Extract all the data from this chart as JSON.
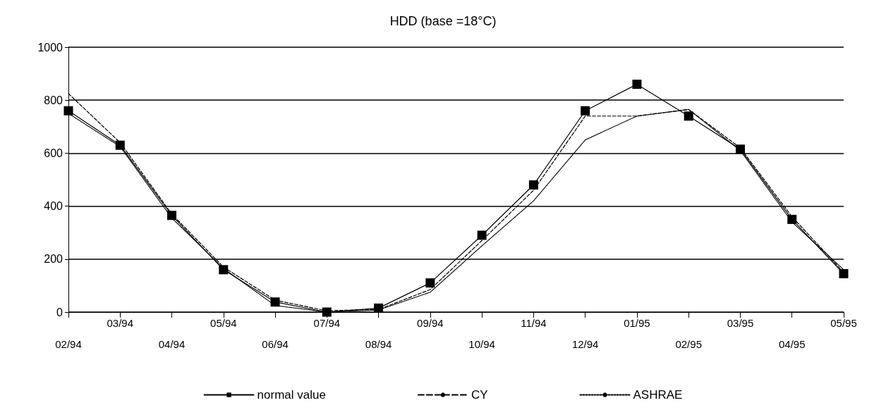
{
  "chart_data": {
    "type": "line",
    "title": "HDD (base =18°C)",
    "categories": [
      "02/94",
      "03/94",
      "04/94",
      "05/94",
      "06/94",
      "07/94",
      "08/94",
      "09/94",
      "10/94",
      "11/94",
      "12/94",
      "01/95",
      "02/95",
      "03/95",
      "04/95",
      "05/95"
    ],
    "series": [
      {
        "name": "normal value",
        "color": "#000000",
        "marker": "square",
        "line_style": "solid",
        "values": [
          760,
          630,
          365,
          160,
          38,
          0,
          15,
          110,
          290,
          480,
          760,
          860,
          740,
          615,
          350,
          145
        ]
      },
      {
        "name": "CY",
        "color": "#000000",
        "marker": "none",
        "line_style": "dashed",
        "values": [
          825,
          640,
          370,
          170,
          45,
          5,
          10,
          85,
          270,
          460,
          740,
          740,
          765,
          620,
          360,
          150
        ]
      },
      {
        "name": "ASHRAE",
        "color": "#000000",
        "marker": "none",
        "line_style": "dotted",
        "values": [
          750,
          625,
          355,
          165,
          25,
          0,
          8,
          75,
          250,
          420,
          650,
          740,
          765,
          610,
          340,
          160
        ]
      }
    ],
    "ylim": [
      0,
      1000
    ],
    "yticks": [
      0,
      200,
      400,
      600,
      800,
      1000
    ],
    "grid": "y",
    "legend": "bottom"
  }
}
